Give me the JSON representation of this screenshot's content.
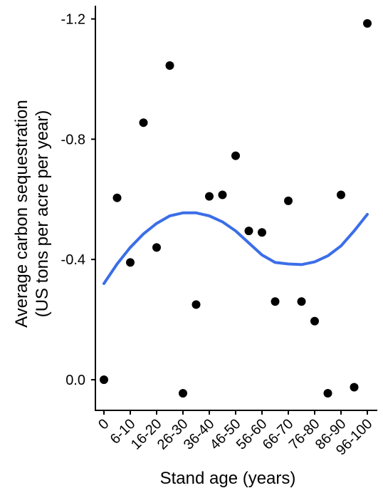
{
  "chart_data": {
    "type": "scatter",
    "xlabel": "Stand age (years)",
    "ylabel_lines": [
      "Average carbon sequestration",
      "(US tons per acre per year)"
    ],
    "x_tick_labels": [
      "0",
      "6-10",
      "16-20",
      "26-30",
      "36-40",
      "46-50",
      "56-60",
      "66-70",
      "76-80",
      "86-90",
      "96-100"
    ],
    "y_tick_labels": [
      "0.0",
      "-0.4",
      "-0.8",
      "-1.2"
    ],
    "y_ticks": [
      0.0,
      -0.4,
      -0.8,
      -1.2
    ],
    "ylim": [
      0.1,
      -1.28
    ],
    "y_axis_reversed": true,
    "points": [
      {
        "x": 0,
        "y": 0.0
      },
      {
        "x": 5,
        "y": -0.605
      },
      {
        "x": 10,
        "y": -0.39
      },
      {
        "x": 15,
        "y": -0.855
      },
      {
        "x": 20,
        "y": -0.44
      },
      {
        "x": 25,
        "y": -1.045
      },
      {
        "x": 30,
        "y": 0.045
      },
      {
        "x": 35,
        "y": -0.25
      },
      {
        "x": 40,
        "y": -0.61
      },
      {
        "x": 45,
        "y": -0.615
      },
      {
        "x": 50,
        "y": -0.745
      },
      {
        "x": 55,
        "y": -0.495
      },
      {
        "x": 60,
        "y": -0.49
      },
      {
        "x": 65,
        "y": -0.26
      },
      {
        "x": 70,
        "y": -0.595
      },
      {
        "x": 75,
        "y": -0.26
      },
      {
        "x": 80,
        "y": -0.195
      },
      {
        "x": 85,
        "y": 0.045
      },
      {
        "x": 90,
        "y": -0.615
      },
      {
        "x": 95,
        "y": 0.025
      },
      {
        "x": 100,
        "y": -1.185
      }
    ],
    "trend_line": {
      "color": "#3b6ee8",
      "x": [
        0,
        5,
        10,
        15,
        20,
        25,
        30,
        35,
        40,
        45,
        50,
        55,
        60,
        65,
        70,
        75,
        80,
        85,
        90,
        95,
        100
      ],
      "y": [
        -0.32,
        -0.385,
        -0.44,
        -0.485,
        -0.52,
        -0.545,
        -0.555,
        -0.555,
        -0.545,
        -0.525,
        -0.495,
        -0.455,
        -0.415,
        -0.39,
        -0.385,
        -0.383,
        -0.392,
        -0.412,
        -0.445,
        -0.495,
        -0.55
      ]
    },
    "point_color": "#000000",
    "grid": false,
    "legend": "none"
  }
}
